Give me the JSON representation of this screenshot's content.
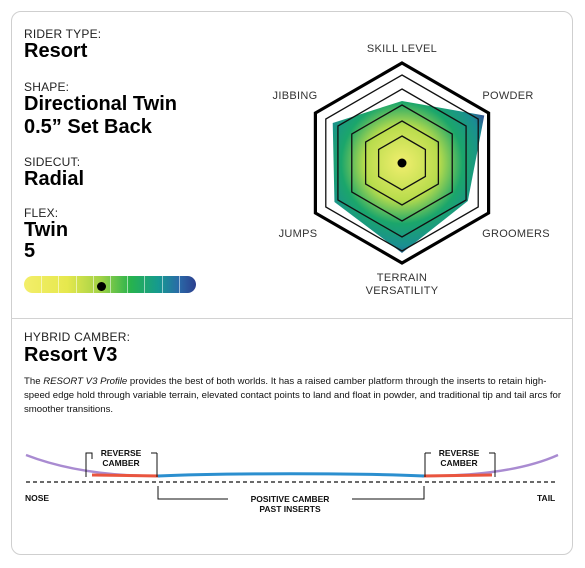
{
  "rider_type": {
    "label": "RIDER TYPE:",
    "value": "Resort"
  },
  "shape": {
    "label": "SHAPE:",
    "value_line1": "Directional Twin",
    "value_line2": "0.5” Set Back"
  },
  "sidecut": {
    "label": "SIDECUT:",
    "value": "Radial"
  },
  "flex": {
    "label": "FLEX:",
    "value_line1": "Twin",
    "value_line2": "5",
    "level": 5,
    "scale_max": 10
  },
  "radar": {
    "axes": [
      "SKILL LEVEL",
      "POWDER",
      "GROOMERS",
      "TERRAIN VERSATILITY",
      "JUMPS",
      "JIBBING"
    ],
    "terrain_line1": "TERRAIN",
    "terrain_line2": "VERSATILITY",
    "values": [
      0.62,
      0.95,
      0.76,
      0.9,
      0.78,
      0.8
    ],
    "scale_max": 1,
    "colors": {
      "outer": "#3b3f95",
      "mid": "#1ba66b",
      "center": "#f1ee6e"
    }
  },
  "camber": {
    "label": "HYBRID CAMBER:",
    "title": "Resort V3",
    "desc_italic": "RESORT V3 Profile",
    "desc_pre": "The ",
    "desc_post": " provides the best of both worlds. It has a raised camber platform through the inserts to retain high-speed edge hold through variable terrain, elevated contact points to land and float in powder, and traditional tip and tail arcs for smoother transitions.",
    "reverse_left_1": "REVERSE",
    "reverse_left_2": "CAMBER",
    "reverse_right_1": "REVERSE",
    "reverse_right_2": "CAMBER",
    "positive_1": "POSITIVE CAMBER",
    "positive_2": "PAST INSERTS",
    "nose": "NOSE",
    "tail": "TAIL",
    "colors": {
      "tip": "#a98bd1",
      "reverse": "#e9553f",
      "positive": "#2b8fcf"
    }
  }
}
